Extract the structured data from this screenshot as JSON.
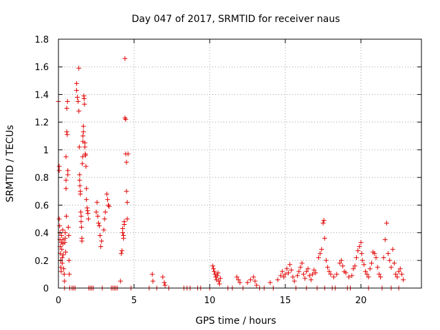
{
  "chart_data": {
    "type": "scatter",
    "title": "Day 047 of 2017, SRMTID for receiver naus",
    "xlabel": "GPS time / hours",
    "ylabel": "SRMTID / TECUs",
    "xlim": [
      0,
      24
    ],
    "ylim": [
      0,
      1.8
    ],
    "x_ticks": [
      "0",
      "5",
      "10",
      "15",
      "20"
    ],
    "x_tick_values": [
      0,
      5,
      10,
      15,
      20
    ],
    "y_ticks": [
      "0",
      "0.2",
      "0.4",
      "0.6",
      "0.8",
      "1",
      "1.2",
      "1.4",
      "1.6",
      "1.8"
    ],
    "y_tick_values": [
      0,
      0.2,
      0.4,
      0.6,
      0.8,
      1.0,
      1.2,
      1.4,
      1.6,
      1.8
    ],
    "grid": true,
    "marker": "+",
    "marker_color": "#e00000",
    "points": [
      [
        0.0,
        1.35
      ],
      [
        0.05,
        0.88
      ],
      [
        0.05,
        0.85
      ],
      [
        0.05,
        0.5
      ],
      [
        0.08,
        0.45
      ],
      [
        0.1,
        0.4
      ],
      [
        0.1,
        0.35
      ],
      [
        0.12,
        0.3
      ],
      [
        0.12,
        0.25
      ],
      [
        0.15,
        0.2
      ],
      [
        0.15,
        0.15
      ],
      [
        0.18,
        0.12
      ],
      [
        0.2,
        0.38
      ],
      [
        0.2,
        0.33
      ],
      [
        0.22,
        0.28
      ],
      [
        0.25,
        0.22
      ],
      [
        0.25,
        0.18
      ],
      [
        0.28,
        0.42
      ],
      [
        0.3,
        0.35
      ],
      [
        0.3,
        0.32
      ],
      [
        0.32,
        0.24
      ],
      [
        0.35,
        0.14
      ],
      [
        0.38,
        0.1
      ],
      [
        0.4,
        0.05
      ],
      [
        0.4,
        0.0
      ],
      [
        0.42,
        0.33
      ],
      [
        0.45,
        0.4
      ],
      [
        0.45,
        0.36
      ],
      [
        0.48,
        0.26
      ],
      [
        0.5,
        0.95
      ],
      [
        0.5,
        0.78
      ],
      [
        0.5,
        0.72
      ],
      [
        0.52,
        0.52
      ],
      [
        0.55,
        1.3
      ],
      [
        0.55,
        1.13
      ],
      [
        0.58,
        1.11
      ],
      [
        0.6,
        1.35
      ],
      [
        0.62,
        0.85
      ],
      [
        0.62,
        0.82
      ],
      [
        0.65,
        0.44
      ],
      [
        0.68,
        0.38
      ],
      [
        0.7,
        0.2
      ],
      [
        0.72,
        0.1
      ],
      [
        0.75,
        0.0
      ],
      [
        1.2,
        1.48
      ],
      [
        1.2,
        1.43
      ],
      [
        1.25,
        1.38
      ],
      [
        1.3,
        1.35
      ],
      [
        1.35,
        1.59
      ],
      [
        1.35,
        1.28
      ],
      [
        1.38,
        1.02
      ],
      [
        1.4,
        0.82
      ],
      [
        1.4,
        0.78
      ],
      [
        1.42,
        0.74
      ],
      [
        1.45,
        0.7
      ],
      [
        1.45,
        0.68
      ],
      [
        1.48,
        0.55
      ],
      [
        1.5,
        0.52
      ],
      [
        1.5,
        0.48
      ],
      [
        1.52,
        0.44
      ],
      [
        1.55,
        0.36
      ],
      [
        1.55,
        0.34
      ],
      [
        1.58,
        0.9
      ],
      [
        1.6,
        0.95
      ],
      [
        1.62,
        1.1
      ],
      [
        1.62,
        1.06
      ],
      [
        1.65,
        1.17
      ],
      [
        1.65,
        1.13
      ],
      [
        1.68,
        1.39
      ],
      [
        1.7,
        1.37
      ],
      [
        1.72,
        1.33
      ],
      [
        1.75,
        1.05
      ],
      [
        1.75,
        1.02
      ],
      [
        1.78,
        0.97
      ],
      [
        1.8,
        0.96
      ],
      [
        1.82,
        0.88
      ],
      [
        1.85,
        0.72
      ],
      [
        1.85,
        0.64
      ],
      [
        1.9,
        0.58
      ],
      [
        1.92,
        0.56
      ],
      [
        1.95,
        0.54
      ],
      [
        1.98,
        0.5
      ],
      [
        2.0,
        0.0
      ],
      [
        2.5,
        0.55
      ],
      [
        2.55,
        0.62
      ],
      [
        2.6,
        0.52
      ],
      [
        2.65,
        0.47
      ],
      [
        2.7,
        0.45
      ],
      [
        2.75,
        0.38
      ],
      [
        2.8,
        0.3
      ],
      [
        2.85,
        0.34
      ],
      [
        3.0,
        0.42
      ],
      [
        3.05,
        0.5
      ],
      [
        3.1,
        0.55
      ],
      [
        3.2,
        0.68
      ],
      [
        3.25,
        0.64
      ],
      [
        3.3,
        0.6
      ],
      [
        3.35,
        0.59
      ],
      [
        4.1,
        0.05
      ],
      [
        4.15,
        0.25
      ],
      [
        4.2,
        0.27
      ],
      [
        4.25,
        0.4
      ],
      [
        4.25,
        0.43
      ],
      [
        4.3,
        0.38
      ],
      [
        4.3,
        0.36
      ],
      [
        4.35,
        0.46
      ],
      [
        4.35,
        0.48
      ],
      [
        4.4,
        1.66
      ],
      [
        4.4,
        1.23
      ],
      [
        4.45,
        1.22
      ],
      [
        4.45,
        0.97
      ],
      [
        4.5,
        0.91
      ],
      [
        4.5,
        0.7
      ],
      [
        4.55,
        0.62
      ],
      [
        4.55,
        0.5
      ],
      [
        4.6,
        0.97
      ],
      [
        6.2,
        0.1
      ],
      [
        6.25,
        0.05
      ],
      [
        6.9,
        0.08
      ],
      [
        7.0,
        0.04
      ],
      [
        7.05,
        0.02
      ],
      [
        10.2,
        0.16
      ],
      [
        10.25,
        0.14
      ],
      [
        10.3,
        0.12
      ],
      [
        10.35,
        0.1
      ],
      [
        10.4,
        0.08
      ],
      [
        10.45,
        0.06
      ],
      [
        10.5,
        0.09
      ],
      [
        10.55,
        0.11
      ],
      [
        10.6,
        0.05
      ],
      [
        10.65,
        0.03
      ],
      [
        10.7,
        0.07
      ],
      [
        11.8,
        0.08
      ],
      [
        11.9,
        0.06
      ],
      [
        12.0,
        0.04
      ],
      [
        12.5,
        0.04
      ],
      [
        12.7,
        0.06
      ],
      [
        12.9,
        0.08
      ],
      [
        13.0,
        0.05
      ],
      [
        13.1,
        0.02
      ],
      [
        14.0,
        0.04
      ],
      [
        14.5,
        0.06
      ],
      [
        14.7,
        0.09
      ],
      [
        14.8,
        0.12
      ],
      [
        14.9,
        0.08
      ],
      [
        15.0,
        0.1
      ],
      [
        15.1,
        0.14
      ],
      [
        15.2,
        0.11
      ],
      [
        15.3,
        0.17
      ],
      [
        15.4,
        0.13
      ],
      [
        15.5,
        0.08
      ],
      [
        15.6,
        0.05
      ],
      [
        15.8,
        0.09
      ],
      [
        15.9,
        0.12
      ],
      [
        16.0,
        0.15
      ],
      [
        16.1,
        0.18
      ],
      [
        16.2,
        0.1
      ],
      [
        16.3,
        0.07
      ],
      [
        16.4,
        0.12
      ],
      [
        16.5,
        0.14
      ],
      [
        16.6,
        0.09
      ],
      [
        16.7,
        0.06
      ],
      [
        16.8,
        0.1
      ],
      [
        16.9,
        0.13
      ],
      [
        17.0,
        0.11
      ],
      [
        17.2,
        0.22
      ],
      [
        17.3,
        0.25
      ],
      [
        17.4,
        0.28
      ],
      [
        17.5,
        0.47
      ],
      [
        17.55,
        0.49
      ],
      [
        17.6,
        0.36
      ],
      [
        17.7,
        0.2
      ],
      [
        17.8,
        0.15
      ],
      [
        17.9,
        0.12
      ],
      [
        18.0,
        0.1
      ],
      [
        18.2,
        0.08
      ],
      [
        18.4,
        0.1
      ],
      [
        18.6,
        0.18
      ],
      [
        18.7,
        0.2
      ],
      [
        18.8,
        0.16
      ],
      [
        18.9,
        0.12
      ],
      [
        19.0,
        0.11
      ],
      [
        19.2,
        0.08
      ],
      [
        19.4,
        0.09
      ],
      [
        19.5,
        0.14
      ],
      [
        19.6,
        0.16
      ],
      [
        19.7,
        0.22
      ],
      [
        19.8,
        0.27
      ],
      [
        19.9,
        0.3
      ],
      [
        20.0,
        0.33
      ],
      [
        20.05,
        0.25
      ],
      [
        20.1,
        0.2
      ],
      [
        20.2,
        0.17
      ],
      [
        20.3,
        0.12
      ],
      [
        20.4,
        0.1
      ],
      [
        20.5,
        0.08
      ],
      [
        20.6,
        0.14
      ],
      [
        20.7,
        0.18
      ],
      [
        20.8,
        0.26
      ],
      [
        20.9,
        0.25
      ],
      [
        21.0,
        0.22
      ],
      [
        21.1,
        0.15
      ],
      [
        21.2,
        0.1
      ],
      [
        21.3,
        0.08
      ],
      [
        21.5,
        0.22
      ],
      [
        21.6,
        0.35
      ],
      [
        21.7,
        0.47
      ],
      [
        21.8,
        0.25
      ],
      [
        21.9,
        0.2
      ],
      [
        22.0,
        0.15
      ],
      [
        22.1,
        0.28
      ],
      [
        22.2,
        0.18
      ],
      [
        22.3,
        0.1
      ],
      [
        22.4,
        0.08
      ],
      [
        22.5,
        0.12
      ],
      [
        22.6,
        0.14
      ],
      [
        22.7,
        0.1
      ],
      [
        22.8,
        0.06
      ],
      [
        0.9,
        0.0
      ],
      [
        1.0,
        0.0
      ],
      [
        1.1,
        0.0
      ],
      [
        2.1,
        0.0
      ],
      [
        2.2,
        0.0
      ],
      [
        2.3,
        0.0
      ],
      [
        2.9,
        0.0
      ],
      [
        3.5,
        0.0
      ],
      [
        3.6,
        0.0
      ],
      [
        3.7,
        0.0
      ],
      [
        3.8,
        0.0
      ],
      [
        3.9,
        0.0
      ],
      [
        4.8,
        0.0
      ],
      [
        6.0,
        0.0
      ],
      [
        6.5,
        0.0
      ],
      [
        7.3,
        0.0
      ],
      [
        8.3,
        0.0
      ],
      [
        8.5,
        0.0
      ],
      [
        8.7,
        0.0
      ],
      [
        9.2,
        0.0
      ],
      [
        9.4,
        0.0
      ],
      [
        10.0,
        0.0
      ],
      [
        11.2,
        0.0
      ],
      [
        11.5,
        0.0
      ],
      [
        12.2,
        0.0
      ],
      [
        13.3,
        0.0
      ],
      [
        13.6,
        0.0
      ],
      [
        14.2,
        0.0
      ],
      [
        15.7,
        0.0
      ],
      [
        16.4,
        0.0
      ],
      [
        17.1,
        0.0
      ],
      [
        17.6,
        0.0
      ],
      [
        18.1,
        0.0
      ],
      [
        18.3,
        0.0
      ],
      [
        19.1,
        0.0
      ],
      [
        19.3,
        0.0
      ],
      [
        20.5,
        0.0
      ],
      [
        21.4,
        0.0
      ],
      [
        22.0,
        0.0
      ],
      [
        22.5,
        0.0
      ]
    ]
  }
}
